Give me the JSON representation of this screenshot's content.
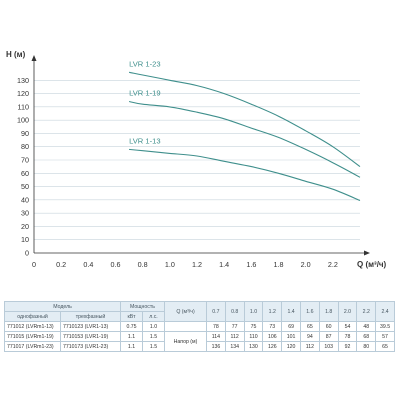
{
  "colors": {
    "curve": "#3f8f8c",
    "grid": "#c8d4dc",
    "axis": "#333333",
    "table_header_bg": "#e3edf4",
    "table_border": "#b9cbd8"
  },
  "chart_data": {
    "type": "line",
    "ylabel": "H (м)",
    "xlabel": "Q (м³/ч)",
    "xlim": [
      0,
      2.4
    ],
    "ylim": [
      0,
      140
    ],
    "x_ticks": [
      "0",
      "0.2",
      "0.4",
      "0.6",
      "0.8",
      "1.0",
      "1.2",
      "1.4",
      "1.6",
      "1.8",
      "2.0",
      "2.2"
    ],
    "y_ticks": [
      "0",
      "10",
      "20",
      "30",
      "40",
      "50",
      "60",
      "70",
      "80",
      "90",
      "100",
      "110",
      "120",
      "130"
    ],
    "grid": true,
    "series": [
      {
        "name": "LVR 1-23",
        "x": [
          0.7,
          0.8,
          1.0,
          1.2,
          1.4,
          1.6,
          1.8,
          2.0,
          2.2,
          2.4
        ],
        "values": [
          136,
          134,
          130,
          126,
          120,
          112,
          103,
          92,
          80,
          65
        ]
      },
      {
        "name": "LVR 1-19",
        "x": [
          0.7,
          0.8,
          1.0,
          1.2,
          1.4,
          1.6,
          1.8,
          2.0,
          2.2,
          2.4
        ],
        "values": [
          114,
          112,
          110,
          106,
          101,
          94,
          87,
          78,
          68,
          57
        ]
      },
      {
        "name": "LVR 1-13",
        "x": [
          0.7,
          0.8,
          1.0,
          1.2,
          1.4,
          1.6,
          1.8,
          2.0,
          2.2,
          2.4
        ],
        "values": [
          78,
          77,
          75,
          73,
          69,
          65,
          60,
          54,
          48,
          39.5
        ]
      }
    ]
  },
  "table": {
    "header": {
      "model": "Модель",
      "single_phase": "однофазный",
      "three_phase": "трехфазный",
      "power": "Мощность",
      "kw": "кВт",
      "hp": "л.с.",
      "q_label": "Q (м³/ч)",
      "q_values": [
        "0.7",
        "0.8",
        "1.0",
        "1.2",
        "1.4",
        "1.6",
        "1.8",
        "2.0",
        "2.2",
        "2.4"
      ]
    },
    "head_label": "Напор (м)",
    "rows": [
      {
        "single": "771012 (LVRm1-13)",
        "three": "7710123 (LVR1-13)",
        "kw": "0.75",
        "hp": "1.0",
        "head": [
          "78",
          "77",
          "75",
          "73",
          "69",
          "65",
          "60",
          "54",
          "48",
          "39.5"
        ]
      },
      {
        "single": "771015 (LVRm1-19)",
        "three": "7710153 (LVR1-19)",
        "kw": "1.1",
        "hp": "1.5",
        "head": [
          "114",
          "112",
          "110",
          "106",
          "101",
          "94",
          "87",
          "78",
          "68",
          "57"
        ]
      },
      {
        "single": "771017 (LVRm1-23)",
        "three": "7710173 (LVR1-23)",
        "kw": "1.1",
        "hp": "1.5",
        "head": [
          "136",
          "134",
          "130",
          "126",
          "120",
          "112",
          "103",
          "92",
          "80",
          "65"
        ]
      }
    ]
  }
}
